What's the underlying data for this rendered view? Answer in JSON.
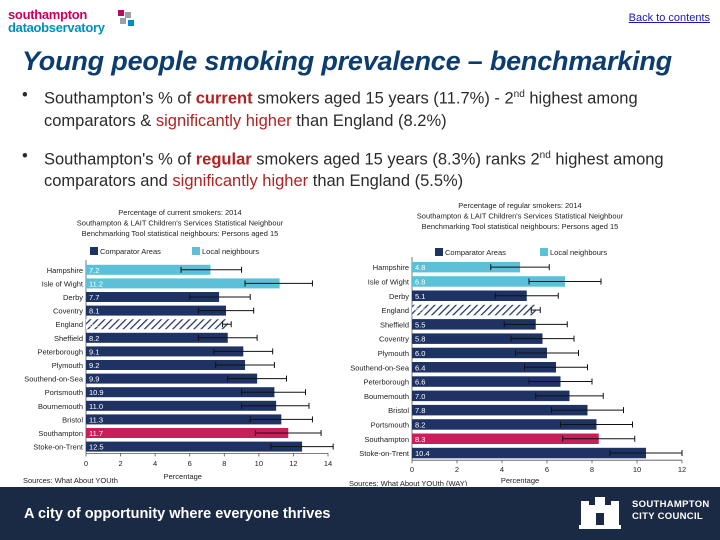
{
  "header": {
    "logo_line1": "southampton",
    "logo_line2": "dataobservatory",
    "back_link": "Back to contents"
  },
  "slide_title": "Young people smoking prevalence – benchmarking",
  "bullets": [
    {
      "p1": "Southampton's % of ",
      "hl1": "current",
      "p2": " smokers aged 15 years (11.7%) - 2",
      "sup": "nd",
      "p3": " highest among comparators & ",
      "hl2": "significantly higher",
      "p4": " than England (8.2%)"
    },
    {
      "p1": "Southampton's % of ",
      "hl1": "regular",
      "p2": " smokers aged 15 years (8.3%) ranks 2",
      "sup": "nd",
      "p3": " highest among comparators and ",
      "hl2": "significantly higher",
      "p4": " than England (5.5%)"
    }
  ],
  "chart_data": [
    {
      "type": "bar",
      "orientation": "horizontal",
      "title": [
        "Percentage of current smokers: 2014",
        "Southampton & LAIT Children's Services Statistical Neighbour",
        "Benchmarking Tool statistical neighbours: Persons aged 15"
      ],
      "legend": [
        "Comparator Areas",
        "Local neighbours"
      ],
      "legend_position": "top",
      "xlabel": "Percentage",
      "xlim": [
        0,
        14
      ],
      "xticks": [
        0,
        2,
        4,
        6,
        8,
        10,
        12,
        14
      ],
      "source": "Sources: What About YOUth",
      "categories": [
        "Hampshire",
        "Isle of Wight",
        "Derby",
        "Coventry",
        "England",
        "Sheffield",
        "Peterborough",
        "Plymouth",
        "Southend-on-Sea",
        "Portsmouth",
        "Bournemouth",
        "Bristol",
        "Southampton",
        "Stoke-on-Trent"
      ],
      "values": [
        7.2,
        11.2,
        7.7,
        8.1,
        8.2,
        8.2,
        9.1,
        9.2,
        9.9,
        10.9,
        11.0,
        11.3,
        11.7,
        12.5
      ],
      "labels": [
        "7.2",
        "11.2",
        "7.7",
        "8.1",
        "8.2",
        "8.2",
        "9.1",
        "9.2",
        "9.9",
        "10.9",
        "11.0",
        "11.3",
        "11.7",
        "12.5"
      ],
      "ci_low": [
        5.5,
        9.2,
        6.0,
        6.5,
        7.9,
        6.5,
        7.4,
        7.5,
        8.2,
        9.0,
        9.0,
        9.5,
        9.8,
        10.7
      ],
      "ci_high": [
        9.0,
        13.1,
        9.5,
        9.7,
        8.4,
        9.9,
        10.8,
        10.9,
        11.6,
        12.7,
        12.9,
        13.1,
        13.6,
        14.3
      ],
      "categories_type": [
        "comparator",
        "comparator",
        "neighbour",
        "neighbour",
        "england",
        "neighbour",
        "neighbour",
        "neighbour",
        "neighbour",
        "neighbour",
        "neighbour",
        "neighbour",
        "southampton",
        "neighbour"
      ]
    },
    {
      "type": "bar",
      "orientation": "horizontal",
      "title": [
        "Percentage of regular smokers: 2014",
        "Southampton & LAIT Children's Services Statistical Neighbour",
        "Benchmarking Tool statistical neighbours: Persons aged 15"
      ],
      "legend": [
        "Comparator Areas",
        "Local neighbours"
      ],
      "legend_position": "top",
      "xlabel": "Percentage",
      "xlim": [
        0,
        12
      ],
      "xticks": [
        0,
        2,
        4,
        6,
        8,
        10,
        12
      ],
      "source": "Sources: What About YOUth (WAY)",
      "categories": [
        "Hampshire",
        "Isle of Wight",
        "Derby",
        "England",
        "Sheffield",
        "Coventry",
        "Plymouth",
        "Southend-on-Sea",
        "Peterborough",
        "Bournemouth",
        "Bristol",
        "Portsmouth",
        "Southampton",
        "Stoke-on-Trent"
      ],
      "values": [
        4.8,
        6.8,
        5.1,
        5.5,
        5.5,
        5.8,
        6.0,
        6.4,
        6.6,
        7.0,
        7.8,
        8.2,
        8.3,
        10.4
      ],
      "labels": [
        "4.8",
        "6.8",
        "5.1",
        "5.5",
        "5.5",
        "5.8",
        "6.0",
        "6.4",
        "6.6",
        "7.0",
        "7.8",
        "8.2",
        "8.3",
        "10.4"
      ],
      "ci_low": [
        3.5,
        5.2,
        3.7,
        5.3,
        4.1,
        4.4,
        4.6,
        5.0,
        5.2,
        5.5,
        6.2,
        6.6,
        6.7,
        8.8
      ],
      "ci_high": [
        6.1,
        8.4,
        6.5,
        5.7,
        6.9,
        7.2,
        7.4,
        7.8,
        8.0,
        8.5,
        9.4,
        9.8,
        9.9,
        12.0
      ],
      "categories_type": [
        "comparator",
        "comparator",
        "neighbour",
        "england",
        "neighbour",
        "neighbour",
        "neighbour",
        "neighbour",
        "neighbour",
        "neighbour",
        "neighbour",
        "neighbour",
        "southampton",
        "neighbour"
      ]
    }
  ],
  "colors": {
    "comparator": "#5bc0d8",
    "neighbour": "#1e3264",
    "southampton": "#c81e5a",
    "england_hatch": "#1e3264",
    "title": "#0c3d6e",
    "footer_bg": "#1b2a44"
  },
  "footer": {
    "slogan": "A city of opportunity where everyone thrives",
    "council_line1": "SOUTHAMPTON",
    "council_line2": "CITY COUNCIL"
  }
}
